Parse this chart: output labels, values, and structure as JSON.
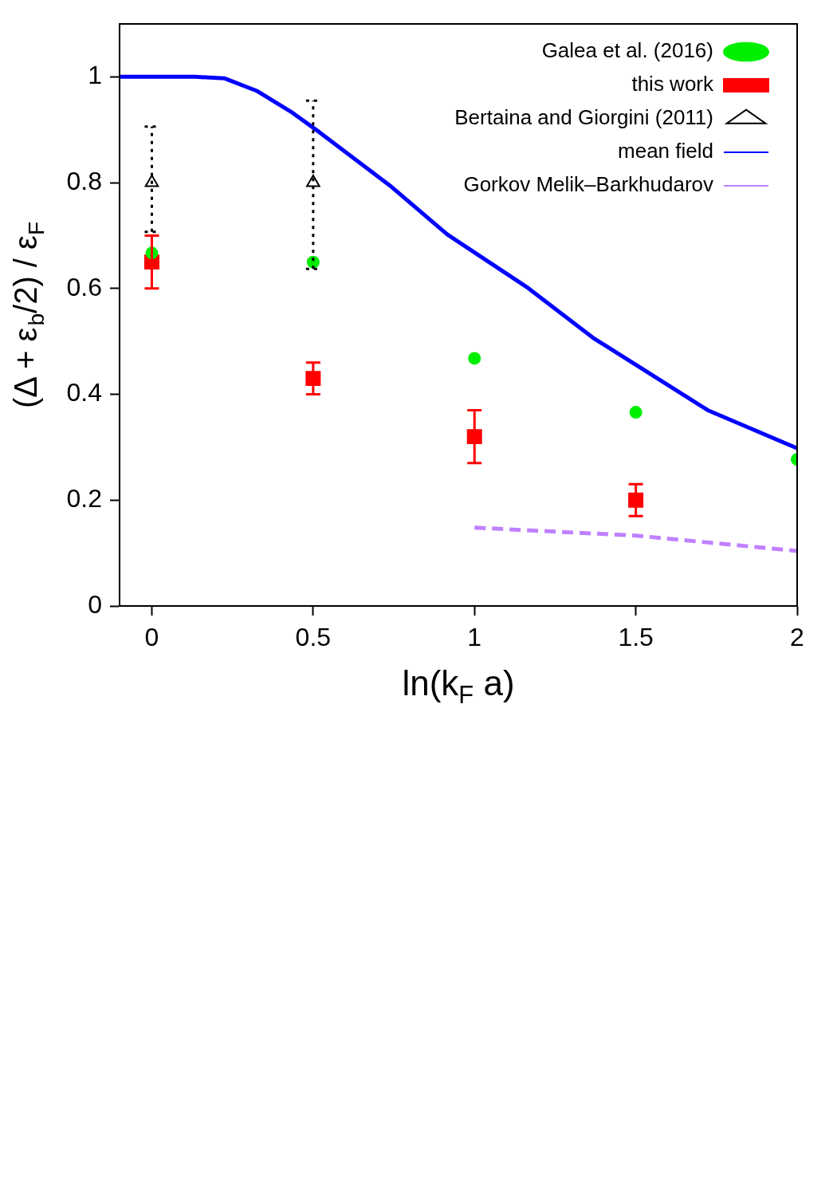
{
  "chart_data": {
    "type": "scatter",
    "xlabel": "ln(k$_{F}$ a)",
    "ylabel": "(Δ + ε$_{b}$/2) / ε$_{F}$",
    "xlim": [
      -0.1,
      2
    ],
    "ylim": [
      0,
      1.1
    ],
    "xticks": [
      0,
      0.5,
      1,
      1.5,
      2
    ],
    "yticks": [
      0,
      0.2,
      0.4,
      0.6,
      0.8,
      1
    ],
    "grid": false,
    "legend": "top right",
    "series": [
      {
        "name": "this work",
        "marker": "square",
        "color": "#ff0000",
        "x": [
          0,
          0.5,
          1,
          1.5
        ],
        "values": [
          0.65,
          0.43,
          0.32,
          0.2
        ],
        "errors": [
          0.05,
          0.03,
          0.05,
          0.03
        ]
      },
      {
        "name": "Galea et al. (2016)",
        "marker": "circle",
        "color": "#00ee00",
        "x": [
          0,
          0.5,
          1,
          1.5,
          2
        ],
        "values": [
          0.667,
          0.65,
          0.468,
          0.366,
          0.277
        ]
      },
      {
        "name": "Bertaina and Giorgini (2011)",
        "marker": "triangle",
        "line_style": "dotted",
        "color": "#000000",
        "x": [
          0,
          0.5
        ],
        "values": [
          0.8,
          0.8
        ],
        "errors": [
          [
            0.707,
            0.906
          ],
          [
            0.637,
            0.955
          ]
        ]
      },
      {
        "name": "mean field",
        "type": "line",
        "marker": "none",
        "line_style": "solid",
        "color": "#0000ff",
        "x": [
          -0.1,
          0.135,
          0.226,
          0.327,
          0.436,
          0.518,
          0.737,
          0.916,
          1.166,
          1.367,
          1.723,
          2
        ],
        "values": [
          1,
          1,
          0.997,
          0.973,
          0.932,
          0.896,
          0.795,
          0.702,
          0.601,
          0.507,
          0.37,
          0.298
        ]
      },
      {
        "name": "Gorkov Melik–Barkhudarov",
        "type": "line",
        "marker": "none",
        "line_style": "dashed",
        "color": "#c080ff",
        "x": [
          1,
          1.5,
          2
        ],
        "values": [
          0.148,
          0.133,
          0.104
        ]
      }
    ]
  }
}
